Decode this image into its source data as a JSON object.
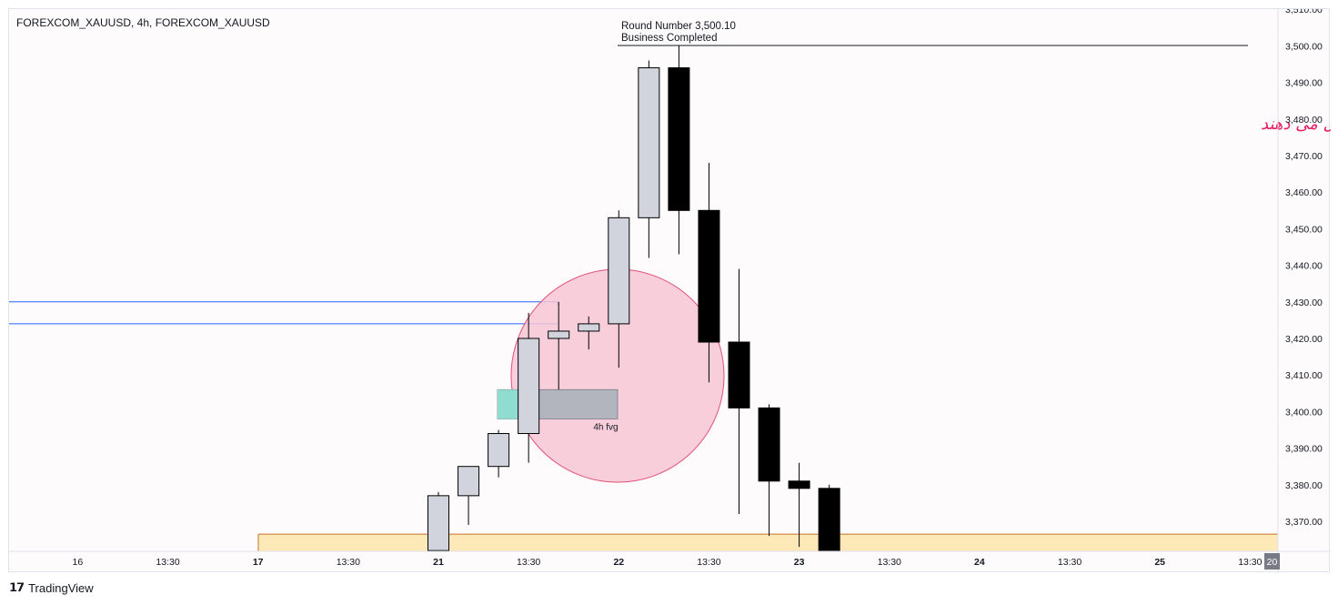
{
  "symbol_title": "FOREXCOM_XAUUSD, 4h, FOREXCOM_XAUUSD",
  "brand": "TradingView",
  "colors": {
    "bull_fill": "#d1d4dc",
    "bear_fill": "#000000",
    "zone_fill": "#fde8b8",
    "zone_border": "#c9722c",
    "circle_fill": "#f7c5d5",
    "circle_stroke": "#e0507a",
    "fvg_fill": "#b2b5be",
    "fvg_teal": "#8fdcd0",
    "level_line": "#2962ff",
    "annotation_text": "#e91e63"
  },
  "chart_data": {
    "type": "candlestick",
    "timeframe": "4h",
    "y_axis": {
      "ticks": [
        "3,370.00",
        "3,380.00",
        "3,390.00",
        "3,400.00",
        "3,410.00",
        "3,420.00",
        "3,430.00",
        "3,440.00",
        "3,450.00",
        "3,460.00",
        "3,470.00",
        "3,480.00",
        "3,490.00",
        "3,500.00",
        "3,510.00"
      ],
      "tick_values": [
        3370,
        3380,
        3390,
        3400,
        3410,
        3420,
        3430,
        3440,
        3450,
        3460,
        3470,
        3480,
        3490,
        3500,
        3510
      ],
      "range": [
        3362,
        3512
      ]
    },
    "x_axis": {
      "labels": [
        "16",
        "13:30",
        "17",
        "13:30",
        "21",
        "13:30",
        "22",
        "13:30",
        "23",
        "13:30",
        "24",
        "13:30",
        "25",
        "13:30",
        "20"
      ],
      "bold": [
        false,
        false,
        true,
        false,
        true,
        false,
        true,
        false,
        true,
        false,
        true,
        false,
        true,
        false,
        false
      ],
      "slots": [
        -12,
        -9,
        -6,
        -3,
        0,
        3,
        6,
        9,
        12,
        15,
        18,
        21,
        24,
        27,
        29.5
      ]
    },
    "candles": [
      {
        "o": 3362,
        "h": 3378,
        "l": 3355,
        "c": 3377
      },
      {
        "o": 3377,
        "h": 3385,
        "l": 3369,
        "c": 3385
      },
      {
        "o": 3385,
        "h": 3395,
        "l": 3382,
        "c": 3394
      },
      {
        "o": 3394,
        "h": 3427,
        "l": 3386,
        "c": 3420
      },
      {
        "o": 3420,
        "h": 3430,
        "l": 3406,
        "c": 3422
      },
      {
        "o": 3422,
        "h": 3426,
        "l": 3417,
        "c": 3424
      },
      {
        "o": 3424,
        "h": 3455,
        "l": 3412,
        "c": 3453
      },
      {
        "o": 3453,
        "h": 3496,
        "l": 3442,
        "c": 3494
      },
      {
        "o": 3494,
        "h": 3500.1,
        "l": 3443,
        "c": 3455
      },
      {
        "o": 3455,
        "h": 3468,
        "l": 3408,
        "c": 3419
      },
      {
        "o": 3419,
        "h": 3439,
        "l": 3372,
        "c": 3401
      },
      {
        "o": 3401,
        "h": 3402,
        "l": 3366,
        "c": 3381
      },
      {
        "o": 3381,
        "h": 3386,
        "l": 3363,
        "c": 3379
      },
      {
        "o": 3379,
        "h": 3380,
        "l": 3362,
        "c": 3362
      }
    ],
    "annotations": {
      "round_number_label": "Round Number 3,500.10",
      "round_number_sublabel": "Business Completed",
      "round_number_value": 3500.1,
      "persian_note": "کل ریتیل تریدرهای دنیا فقط پنج درصد بازار فارکس را تشکیل می دهند",
      "fvg_label": "4h fvg",
      "fvg_range": [
        3398,
        3406
      ],
      "level_lines": [
        3430,
        3424
      ],
      "zone_top": 3366.5
    }
  }
}
